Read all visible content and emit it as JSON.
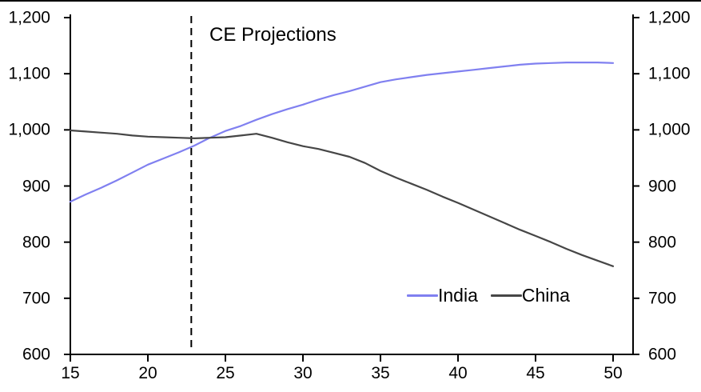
{
  "page": {
    "background_color": "#ffffff",
    "top_border_color": "#000000",
    "axis_color": "#000000",
    "text_color": "#000000"
  },
  "chart_data": {
    "type": "line",
    "title": "",
    "xlabel": "",
    "ylabel": "",
    "grid": false,
    "x_range": [
      15,
      50
    ],
    "y_range": [
      600,
      1200
    ],
    "x_ticks": [
      "15",
      "20",
      "25",
      "30",
      "35",
      "40",
      "45",
      "50"
    ],
    "y_ticks_left": [
      "1,200",
      "1,100",
      "1,000",
      "900",
      "800",
      "700",
      "600"
    ],
    "y_ticks_right": [
      "1,200",
      "1,100",
      "1,000",
      "900",
      "800",
      "700",
      "600"
    ],
    "projection_label": "CE Projections",
    "projection_line_x": 22.8,
    "legend_position": "bottom-right",
    "series": [
      {
        "name": "India",
        "color": "#8080f0",
        "x": [
          15,
          16,
          17,
          18,
          19,
          20,
          21,
          22,
          23,
          24,
          25,
          26,
          27,
          28,
          29,
          30,
          31,
          32,
          33,
          34,
          35,
          36,
          37,
          38,
          39,
          40,
          41,
          42,
          43,
          44,
          45,
          46,
          47,
          48,
          49,
          50
        ],
        "values": [
          872,
          885,
          897,
          910,
          924,
          938,
          949,
          960,
          972,
          986,
          998,
          1007,
          1018,
          1028,
          1037,
          1045,
          1054,
          1062,
          1069,
          1077,
          1085,
          1090,
          1094,
          1098,
          1101,
          1104,
          1107,
          1110,
          1113,
          1116,
          1118,
          1119,
          1120,
          1120,
          1120,
          1119
        ]
      },
      {
        "name": "China",
        "color": "#464646",
        "x": [
          15,
          16,
          17,
          18,
          19,
          20,
          21,
          22,
          23,
          24,
          25,
          26,
          27,
          28,
          29,
          30,
          31,
          32,
          33,
          34,
          35,
          36,
          37,
          38,
          39,
          40,
          41,
          42,
          43,
          44,
          45,
          46,
          47,
          48,
          49,
          50
        ],
        "values": [
          999,
          997,
          995,
          993,
          990,
          988,
          987,
          986,
          985,
          986,
          987,
          990,
          993,
          986,
          978,
          971,
          966,
          959,
          952,
          941,
          927,
          915,
          904,
          893,
          881,
          870,
          858,
          846,
          834,
          822,
          811,
          800,
          788,
          777,
          767,
          757
        ]
      }
    ]
  },
  "legend": {
    "items": [
      {
        "label": "India",
        "color": "#8080f0"
      },
      {
        "label": "China",
        "color": "#464646"
      }
    ]
  }
}
